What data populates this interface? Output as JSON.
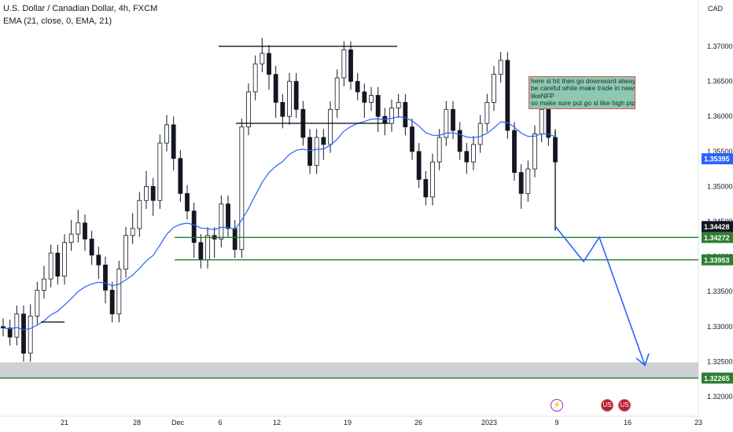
{
  "legend": {
    "symbol": "U.S. Dollar / Canadian Dollar, 4h, FXCM",
    "indicator": "EMA (21, close, 0, EMA, 21)"
  },
  "currency": "CAD",
  "note_lines": [
    "here sl hit then go downward always",
    "be careful while make trade in news",
    "likeNFP",
    "so make sure put go sl like high pips"
  ],
  "event_badges": [
    {
      "type": "event",
      "glyph": "⚡"
    },
    {
      "type": "us-flag",
      "glyph": "US"
    },
    {
      "type": "us-flag",
      "glyph": "US"
    }
  ],
  "colors": {
    "ema": "#2962ff",
    "candle": "#131722",
    "support": "#1e7e34",
    "projection": "#2962ff",
    "zone": "#c7c9cc",
    "price_label": "#131722",
    "ema_label": "#2962ff",
    "support_label": "#2e7d32"
  },
  "chart_data": {
    "type": "line",
    "title": "U.S. Dollar / Canadian Dollar, 4h, FXCM",
    "ylim": [
      1.3167,
      1.3742
    ],
    "y_ticks": [
      "1.37000",
      "1.36500",
      "1.36000",
      "1.35500",
      "1.35000",
      "1.34500",
      "1.34000",
      "1.33500",
      "1.33000",
      "1.32500",
      "1.32000"
    ],
    "x_ticks": [
      "21",
      "28",
      "Dec",
      "6",
      "12",
      "19",
      "26",
      "2023",
      "9",
      "16",
      "23"
    ],
    "price_labels": [
      {
        "label": "1.35395",
        "value": 1.35395,
        "kind": "ema"
      },
      {
        "label": "1.34428",
        "value": 1.34428,
        "kind": "last"
      },
      {
        "label": "1.34272",
        "value": 1.34272,
        "kind": "support"
      },
      {
        "label": "1.33953",
        "value": 1.33953,
        "kind": "support"
      },
      {
        "label": "1.32265",
        "value": 1.32265,
        "kind": "support"
      }
    ],
    "ohlc_path": [
      [
        1.33,
        1.3298
      ],
      [
        1.329,
        1.3285
      ],
      [
        1.331,
        1.3318
      ],
      [
        1.3285,
        1.3262
      ],
      [
        1.332,
        1.3315
      ],
      [
        1.334,
        1.3352
      ],
      [
        1.3375,
        1.3368
      ],
      [
        1.339,
        1.3405
      ],
      [
        1.338,
        1.3372
      ],
      [
        1.341,
        1.342
      ],
      [
        1.344,
        1.3432
      ],
      [
        1.3455,
        1.3448
      ],
      [
        1.342,
        1.3425
      ],
      [
        1.34,
        1.3402
      ],
      [
        1.338,
        1.3388
      ],
      [
        1.3345,
        1.3352
      ],
      [
        1.333,
        1.3318
      ],
      [
        1.337,
        1.3382
      ],
      [
        1.342,
        1.343
      ],
      [
        1.345,
        1.344
      ],
      [
        1.3472,
        1.348
      ],
      [
        1.351,
        1.35
      ],
      [
        1.347,
        1.348
      ],
      [
        1.355,
        1.3562
      ],
      [
        1.359,
        1.3588
      ],
      [
        1.3535,
        1.354
      ],
      [
        1.35,
        1.349
      ],
      [
        1.347,
        1.3465
      ],
      [
        1.341,
        1.342
      ],
      [
        1.34,
        1.3395
      ],
      [
        1.342,
        1.343
      ],
      [
        1.341,
        1.3425
      ],
      [
        1.346,
        1.3475
      ],
      [
        1.345,
        1.344
      ],
      [
        1.342,
        1.341
      ],
      [
        1.356,
        1.3585
      ],
      [
        1.361,
        1.3635
      ],
      [
        1.366,
        1.3675
      ],
      [
        1.37,
        1.369
      ],
      [
        1.365,
        1.366
      ],
      [
        1.361,
        1.362
      ],
      [
        1.3595,
        1.36
      ],
      [
        1.364,
        1.365
      ],
      [
        1.362,
        1.361
      ],
      [
        1.358,
        1.357
      ],
      [
        1.3545,
        1.353
      ],
      [
        1.356,
        1.357
      ],
      [
        1.355,
        1.356
      ],
      [
        1.36,
        1.361
      ],
      [
        1.364,
        1.3655
      ],
      [
        1.368,
        1.3695
      ],
      [
        1.366,
        1.365
      ],
      [
        1.364,
        1.3635
      ],
      [
        1.361,
        1.362
      ],
      [
        1.362,
        1.363
      ],
      [
        1.359,
        1.36
      ],
      [
        1.3585,
        1.359
      ],
      [
        1.36,
        1.3612
      ],
      [
        1.361,
        1.362
      ],
      [
        1.359,
        1.3585
      ],
      [
        1.356,
        1.355
      ],
      [
        1.352,
        1.351
      ],
      [
        1.349,
        1.3485
      ],
      [
        1.352,
        1.3535
      ],
      [
        1.356,
        1.357
      ],
      [
        1.36,
        1.361
      ],
      [
        1.359,
        1.358
      ],
      [
        1.356,
        1.355
      ],
      [
        1.353,
        1.3535
      ],
      [
        1.355,
        1.356
      ],
      [
        1.358,
        1.359
      ],
      [
        1.361,
        1.362
      ],
      [
        1.364,
        1.366
      ],
      [
        1.367,
        1.368
      ],
      [
        1.36,
        1.358
      ],
      [
        1.353,
        1.352
      ],
      [
        1.348,
        1.349
      ],
      [
        1.351,
        1.3525
      ],
      [
        1.356,
        1.3575
      ],
      [
        1.36,
        1.361
      ],
      [
        1.358,
        1.357
      ],
      [
        1.354,
        1.3535
      ]
    ]
  }
}
